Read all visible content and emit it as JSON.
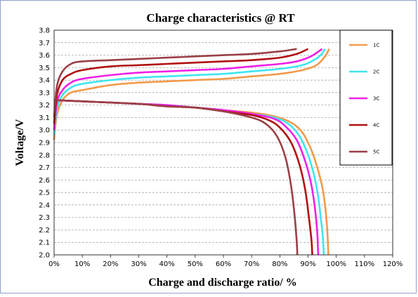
{
  "chart_data": {
    "type": "line",
    "title": "Charge characteristics @ RT",
    "xlabel": "Charge and discharge ratio/ %",
    "ylabel": "Voltage/V",
    "xlim": [
      0,
      120
    ],
    "ylim": [
      2.0,
      3.8
    ],
    "x_ticks": [
      "0%",
      "10%",
      "20%",
      "30%",
      "40%",
      "50%",
      "60%",
      "70%",
      "80%",
      "90%",
      "100%",
      "110%",
      "120%"
    ],
    "y_ticks": [
      "2.0",
      "2.1",
      "2.2",
      "2.3",
      "2.4",
      "2.5",
      "2.6",
      "2.7",
      "2.8",
      "2.9",
      "3.0",
      "3.1",
      "3.2",
      "3.3",
      "3.4",
      "3.5",
      "3.6",
      "3.7",
      "3.8"
    ],
    "grid": "horizontal dashed",
    "legend_position": "top-right",
    "series": [
      {
        "name": "1C",
        "color": "#f39a4a",
        "charge": [
          [
            0,
            2.92
          ],
          [
            1,
            3.12
          ],
          [
            3,
            3.24
          ],
          [
            6,
            3.3
          ],
          [
            10,
            3.32
          ],
          [
            20,
            3.36
          ],
          [
            30,
            3.38
          ],
          [
            40,
            3.39
          ],
          [
            50,
            3.4
          ],
          [
            60,
            3.41
          ],
          [
            70,
            3.43
          ],
          [
            80,
            3.45
          ],
          [
            88,
            3.48
          ],
          [
            93,
            3.52
          ],
          [
            96,
            3.59
          ],
          [
            97.5,
            3.65
          ]
        ],
        "discharge": [
          [
            0,
            3.24
          ],
          [
            10,
            3.23
          ],
          [
            20,
            3.22
          ],
          [
            30,
            3.21
          ],
          [
            40,
            3.2
          ],
          [
            50,
            3.18
          ],
          [
            60,
            3.16
          ],
          [
            70,
            3.14
          ],
          [
            78,
            3.11
          ],
          [
            84,
            3.06
          ],
          [
            88,
            2.98
          ],
          [
            91,
            2.85
          ],
          [
            93,
            2.72
          ],
          [
            95,
            2.55
          ],
          [
            96,
            2.4
          ],
          [
            96.8,
            2.2
          ],
          [
            97.2,
            2.0
          ]
        ]
      },
      {
        "name": "2C",
        "color": "#3fe6ee",
        "charge": [
          [
            0,
            2.96
          ],
          [
            1,
            3.17
          ],
          [
            3,
            3.28
          ],
          [
            6,
            3.34
          ],
          [
            10,
            3.37
          ],
          [
            20,
            3.4
          ],
          [
            30,
            3.42
          ],
          [
            40,
            3.43
          ],
          [
            50,
            3.44
          ],
          [
            60,
            3.45
          ],
          [
            70,
            3.47
          ],
          [
            80,
            3.49
          ],
          [
            88,
            3.52
          ],
          [
            92,
            3.56
          ],
          [
            94.5,
            3.6
          ],
          [
            96,
            3.65
          ]
        ],
        "discharge": [
          [
            0,
            3.24
          ],
          [
            10,
            3.23
          ],
          [
            20,
            3.22
          ],
          [
            30,
            3.21
          ],
          [
            40,
            3.2
          ],
          [
            50,
            3.18
          ],
          [
            60,
            3.16
          ],
          [
            70,
            3.13
          ],
          [
            78,
            3.1
          ],
          [
            83,
            3.05
          ],
          [
            87,
            2.95
          ],
          [
            90,
            2.8
          ],
          [
            92,
            2.65
          ],
          [
            93.5,
            2.48
          ],
          [
            94.5,
            2.3
          ],
          [
            95.2,
            2.15
          ],
          [
            95.6,
            2.0
          ]
        ]
      },
      {
        "name": "3C",
        "color": "#f020e6",
        "charge": [
          [
            0,
            3.0
          ],
          [
            1,
            3.22
          ],
          [
            3,
            3.32
          ],
          [
            6,
            3.38
          ],
          [
            10,
            3.41
          ],
          [
            20,
            3.44
          ],
          [
            30,
            3.46
          ],
          [
            40,
            3.47
          ],
          [
            50,
            3.48
          ],
          [
            60,
            3.49
          ],
          [
            70,
            3.51
          ],
          [
            80,
            3.53
          ],
          [
            86,
            3.55
          ],
          [
            91,
            3.59
          ],
          [
            95,
            3.65
          ]
        ],
        "discharge": [
          [
            0,
            3.24
          ],
          [
            10,
            3.23
          ],
          [
            20,
            3.22
          ],
          [
            30,
            3.21
          ],
          [
            40,
            3.2
          ],
          [
            50,
            3.18
          ],
          [
            60,
            3.16
          ],
          [
            70,
            3.13
          ],
          [
            78,
            3.09
          ],
          [
            82,
            3.03
          ],
          [
            86,
            2.92
          ],
          [
            89,
            2.75
          ],
          [
            91,
            2.58
          ],
          [
            92.3,
            2.4
          ],
          [
            93.2,
            2.2
          ],
          [
            93.6,
            2.0
          ]
        ]
      },
      {
        "name": "4C",
        "color": "#b01010",
        "charge": [
          [
            0,
            3.05
          ],
          [
            1,
            3.28
          ],
          [
            3,
            3.4
          ],
          [
            6,
            3.45
          ],
          [
            10,
            3.48
          ],
          [
            20,
            3.51
          ],
          [
            30,
            3.52
          ],
          [
            40,
            3.53
          ],
          [
            50,
            3.54
          ],
          [
            60,
            3.55
          ],
          [
            70,
            3.56
          ],
          [
            80,
            3.58
          ],
          [
            86,
            3.61
          ],
          [
            90,
            3.65
          ]
        ],
        "discharge": [
          [
            0,
            3.24
          ],
          [
            10,
            3.23
          ],
          [
            20,
            3.22
          ],
          [
            30,
            3.21
          ],
          [
            40,
            3.19
          ],
          [
            50,
            3.18
          ],
          [
            60,
            3.15
          ],
          [
            70,
            3.12
          ],
          [
            76,
            3.08
          ],
          [
            80,
            3.02
          ],
          [
            84,
            2.9
          ],
          [
            87,
            2.72
          ],
          [
            89,
            2.52
          ],
          [
            90.3,
            2.3
          ],
          [
            91.2,
            2.12
          ],
          [
            91.5,
            2.0
          ]
        ]
      },
      {
        "name": "5C",
        "color": "#9a3f46",
        "charge": [
          [
            0,
            3.1
          ],
          [
            1,
            3.35
          ],
          [
            3,
            3.47
          ],
          [
            6,
            3.53
          ],
          [
            10,
            3.55
          ],
          [
            20,
            3.56
          ],
          [
            30,
            3.57
          ],
          [
            40,
            3.58
          ],
          [
            50,
            3.59
          ],
          [
            60,
            3.6
          ],
          [
            70,
            3.61
          ],
          [
            80,
            3.63
          ],
          [
            86,
            3.65
          ]
        ],
        "discharge": [
          [
            0,
            3.24
          ],
          [
            10,
            3.23
          ],
          [
            20,
            3.22
          ],
          [
            30,
            3.21
          ],
          [
            40,
            3.19
          ],
          [
            50,
            3.18
          ],
          [
            60,
            3.15
          ],
          [
            70,
            3.1
          ],
          [
            75,
            3.05
          ],
          [
            79,
            2.95
          ],
          [
            82,
            2.78
          ],
          [
            84,
            2.55
          ],
          [
            85.3,
            2.3
          ],
          [
            86,
            2.1
          ],
          [
            86.2,
            2.0
          ]
        ]
      }
    ]
  }
}
